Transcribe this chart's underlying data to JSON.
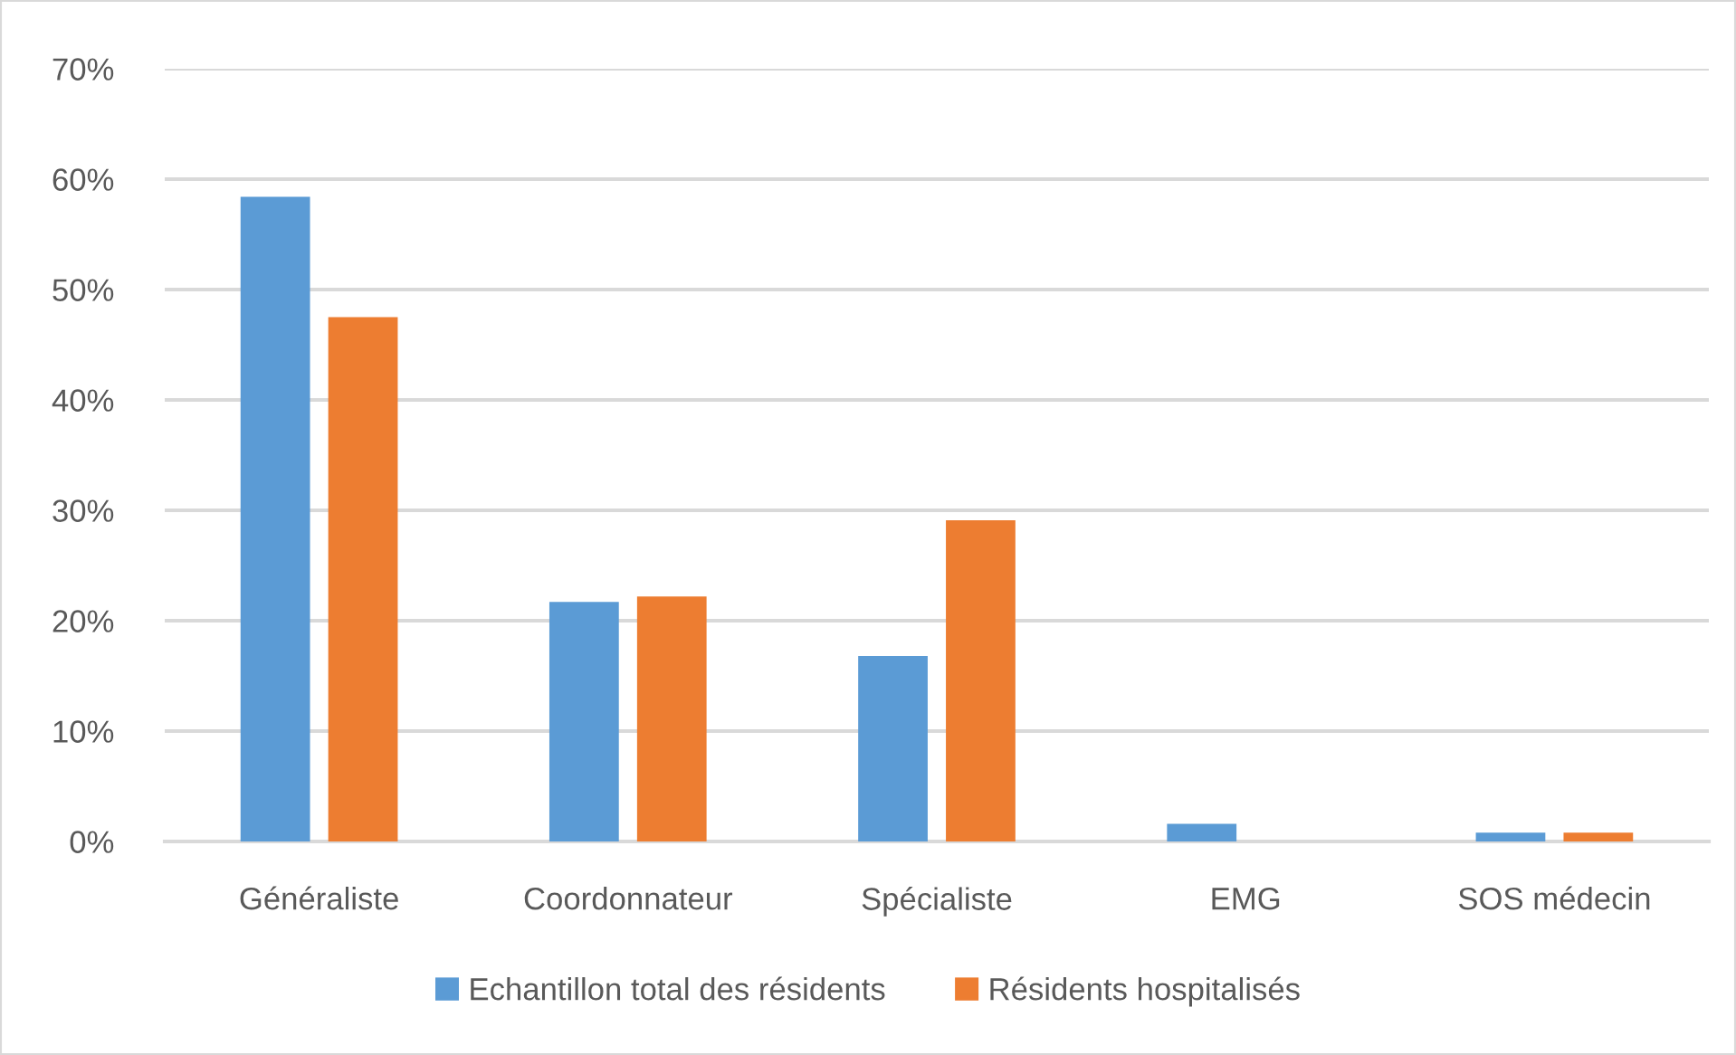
{
  "chart_data": {
    "type": "bar",
    "categories": [
      "Généraliste",
      "Coordonnateur",
      "Spécialiste",
      "EMG",
      "SOS médecin"
    ],
    "series": [
      {
        "name": "Echantillon total des résidents",
        "color": "#5b9bd5",
        "values": [
          58.4,
          21.7,
          16.8,
          1.6,
          0.8
        ]
      },
      {
        "name": "Résidents hospitalisés",
        "color": "#ed7d31",
        "values": [
          47.5,
          22.2,
          29.1,
          0,
          0.8
        ]
      }
    ],
    "ylim": [
      0,
      70
    ],
    "yticks": [
      {
        "value": 0,
        "label": "0%"
      },
      {
        "value": 10,
        "label": "10%"
      },
      {
        "value": 20,
        "label": "20%"
      },
      {
        "value": 30,
        "label": "30%"
      },
      {
        "value": 40,
        "label": "40%"
      },
      {
        "value": 50,
        "label": "50%"
      },
      {
        "value": 60,
        "label": "60%"
      },
      {
        "value": 70,
        "label": "70%"
      }
    ],
    "grid": "y",
    "legend": "bottom"
  }
}
